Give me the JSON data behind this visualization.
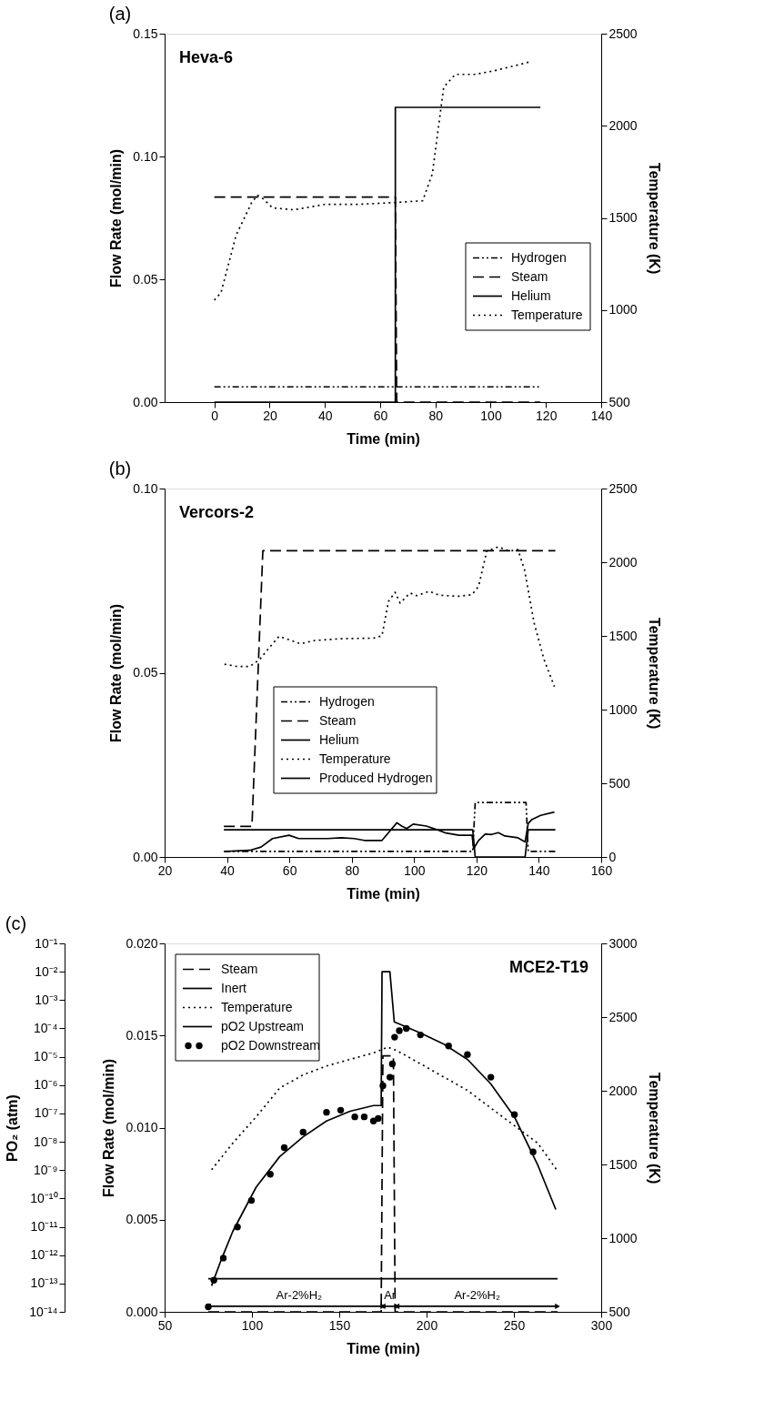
{
  "chart_data": [
    {
      "type": "line",
      "title": "(a)",
      "xlabel": "Time (min)",
      "ylabel": "Flow Rate (mol/min)",
      "y2label": "Temperature (K)",
      "annotations": [
        "Heva-6"
      ],
      "xlim": [
        -18,
        140
      ],
      "xticks": [
        0,
        20,
        40,
        60,
        80,
        100,
        120,
        140
      ],
      "ylim": [
        0,
        0.15
      ],
      "yticks": [
        {
          "value": 0,
          "label": "0.00"
        },
        {
          "value": 0.05,
          "label": "0.05"
        },
        {
          "value": 0.1,
          "label": "0.10"
        },
        {
          "value": 0.15,
          "label": "0.15"
        }
      ],
      "y2lim": [
        500,
        2500
      ],
      "y2ticks": [
        500,
        1000,
        1500,
        2000,
        2500
      ],
      "legend": "right",
      "grid": false,
      "series": [
        {
          "name": "Hydrogen",
          "color": "#000000",
          "line_style": "dashdot",
          "x": [
            0,
            118
          ],
          "values": [
            0.0062,
            0.0062
          ]
        },
        {
          "name": "Steam",
          "color": "#000000",
          "line_style": "dashed",
          "x": [
            0,
            65.5,
            66,
            118
          ],
          "values": [
            0.0835,
            0.0835,
            0,
            0
          ]
        },
        {
          "name": "Helium",
          "color": "#000000",
          "line_style": "solid",
          "x": [
            0,
            65.5,
            65.5,
            118
          ],
          "values": [
            0,
            0,
            0.12,
            0.12
          ]
        },
        {
          "name": "Temperature",
          "color": "#000000",
          "line_style": "dotted",
          "axis": "y2",
          "x": [
            0,
            2.4,
            7.9,
            13.5,
            15.6,
            17.7,
            21.1,
            28.8,
            39.9,
            51,
            64.9,
            75.4,
            78.9,
            83,
            87.2,
            94.2,
            101.1,
            114.3
          ],
          "values": [
            1054,
            1094,
            1407,
            1583,
            1622,
            1603,
            1554,
            1544,
            1573,
            1573,
            1583,
            1593,
            1740,
            2210,
            2279,
            2279,
            2298,
            2347
          ]
        }
      ]
    },
    {
      "type": "line",
      "title": "(b)",
      "xlabel": "Time (min)",
      "ylabel": "Flow Rate (mol/min)",
      "y2label": "Temperature (K)",
      "annotations": [
        "Vercors-2"
      ],
      "xlim": [
        20,
        160
      ],
      "xticks": [
        20,
        40,
        60,
        80,
        100,
        120,
        140,
        160
      ],
      "ylim": [
        0,
        0.1
      ],
      "yticks": [
        {
          "value": 0,
          "label": "0.00"
        },
        {
          "value": 0.05,
          "label": "0.05"
        },
        {
          "value": 0.1,
          "label": "0.10"
        }
      ],
      "y2lim": [
        0,
        2500
      ],
      "y2ticks": [
        0,
        500,
        1000,
        1500,
        2000,
        2500
      ],
      "legend": "left",
      "grid": false,
      "series": [
        {
          "name": "Hydrogen",
          "color": "#000000",
          "line_style": "dashdot",
          "x": [
            39,
            118.8,
            119.6,
            135.9,
            136.6,
            145.3
          ],
          "values": [
            0.0015,
            0.0015,
            0.0148,
            0.0148,
            0.0015,
            0.0015
          ]
        },
        {
          "name": "Steam",
          "color": "#000000",
          "line_style": "dashed",
          "x": [
            39,
            48,
            51.5,
            145.3
          ],
          "values": [
            0.0083,
            0.0083,
            0.0831,
            0.0831
          ]
        },
        {
          "name": "Helium",
          "color": "#000000",
          "line_style": "solid",
          "x": [
            39,
            118.8,
            119.6,
            135.6,
            136.6,
            145.3
          ],
          "values": [
            0.0074,
            0.0074,
            0,
            0,
            0.0074,
            0.0074
          ]
        },
        {
          "name": "Temperature",
          "color": "#000000",
          "line_style": "dotted",
          "axis": "y2",
          "x": [
            39.2,
            43.1,
            47.3,
            50.4,
            53,
            56.7,
            59.9,
            63.5,
            68.2,
            76.6,
            87.1,
            89.7,
            91.8,
            93.9,
            95.5,
            98.7,
            100.8,
            104.9,
            108.1,
            114.4,
            118.6,
            120.7,
            123.3,
            127,
            130.6,
            133.3,
            135.4,
            138.5,
            141.7,
            145
          ],
          "values": [
            1308,
            1293,
            1293,
            1338,
            1406,
            1497,
            1474,
            1447,
            1469,
            1481,
            1485,
            1501,
            1735,
            1796,
            1723,
            1791,
            1773,
            1803,
            1776,
            1769,
            1780,
            1837,
            2075,
            2104,
            2075,
            2086,
            1950,
            1587,
            1338,
            1156
          ]
        },
        {
          "name": "Produced Hydrogen",
          "color": "#000000",
          "line_style": "solid",
          "x": [
            39.2,
            47.3,
            50.9,
            54.6,
            59.9,
            63,
            72.4,
            76.6,
            80.8,
            84,
            89.7,
            94.5,
            96,
            97.6,
            99.7,
            103.9,
            108.1,
            110.2,
            114.4,
            118.6,
            119.1,
            120.7,
            122.8,
            124.9,
            127,
            129.1,
            133.3,
            135.6,
            136.6,
            137.7,
            140.6,
            145
          ],
          "values": [
            0.0015,
            0.0018,
            0.0027,
            0.005,
            0.0059,
            0.005,
            0.005,
            0.0052,
            0.005,
            0.0045,
            0.0045,
            0.0093,
            0.0084,
            0.0077,
            0.0089,
            0.0084,
            0.0072,
            0.0065,
            0.0059,
            0.0059,
            0.0023,
            0.0045,
            0.0062,
            0.0061,
            0.0066,
            0.0057,
            0.0052,
            0.0041,
            0.0091,
            0.0101,
            0.0113,
            0.0122
          ]
        }
      ]
    },
    {
      "type": "line",
      "title": "(c)",
      "xlabel": "Time (min)",
      "ylabel": "Flow Rate (mol/min)",
      "y2label": "Temperature (K)",
      "y3label": "PO₂ (atm)",
      "annotations": [
        "MCE2-T19",
        {
          "text": "Ar-2%H₂",
          "x": 127,
          "y": 0.0003
        },
        {
          "text": "Ar",
          "x": 179,
          "y": 0.0003
        },
        {
          "text": "Ar-2%H₂",
          "x": 229,
          "y": 0.0003
        }
      ],
      "xlim": [
        50,
        300
      ],
      "xticks": [
        50,
        100,
        150,
        200,
        250,
        300
      ],
      "ylim": [
        0,
        0.02
      ],
      "yticks": [
        {
          "value": 0,
          "label": "0.000"
        },
        {
          "value": 0.005,
          "label": "0.005"
        },
        {
          "value": 0.01,
          "label": "0.010"
        },
        {
          "value": 0.015,
          "label": "0.015"
        },
        {
          "value": 0.02,
          "label": "0.020"
        }
      ],
      "y2lim": [
        500,
        3000
      ],
      "y2ticks": [
        500,
        1000,
        1500,
        2000,
        2500,
        3000
      ],
      "y3lim": [
        1e-14,
        0.1
      ],
      "y3ticks": [
        {
          "value": 1e-14,
          "label": "10⁻¹⁴"
        },
        {
          "value": 1e-13,
          "label": "10⁻¹³"
        },
        {
          "value": 1e-12,
          "label": "10⁻¹²"
        },
        {
          "value": 1e-11,
          "label": "10⁻¹¹"
        },
        {
          "value": 1e-10,
          "label": "10⁻¹⁰"
        },
        {
          "value": 1e-09,
          "label": "10⁻⁹"
        },
        {
          "value": 1e-08,
          "label": "10⁻⁸"
        },
        {
          "value": 1e-07,
          "label": "10⁻⁷"
        },
        {
          "value": 1e-06,
          "label": "10⁻⁶"
        },
        {
          "value": 1e-05,
          "label": "10⁻⁵"
        },
        {
          "value": 0.0001,
          "label": "10⁻⁴"
        },
        {
          "value": 0.001,
          "label": "10⁻³"
        },
        {
          "value": 0.01,
          "label": "10⁻²"
        },
        {
          "value": 0.1,
          "label": "10⁻¹"
        }
      ],
      "log": "y3",
      "legend": "top left",
      "grid": false,
      "series": [
        {
          "color": "#000000",
          "line_style": "solid",
          "marker": "triangle",
          "x": [
            75,
            175
          ],
          "values": [
            0.0003,
            0.0003
          ]
        },
        {
          "color": "#000000",
          "line_style": "solid",
          "marker": "triangle",
          "x": [
            175,
            183
          ],
          "values": [
            0.0003,
            0.0003
          ]
        },
        {
          "color": "#000000",
          "line_style": "solid",
          "marker": "triangle",
          "x": [
            183,
            275
          ],
          "values": [
            0.0003,
            0.0003
          ]
        },
        {
          "name": "Steam",
          "color": "#000000",
          "line_style": "dashed",
          "x": [
            75,
            174,
            175,
            181,
            182,
            275
          ],
          "values": [
            0,
            0,
            0.0139,
            0.0139,
            0,
            0
          ]
        },
        {
          "name": "Inert",
          "color": "#000000",
          "line_style": "solid",
          "x": [
            75,
            275
          ],
          "values": [
            0.0018,
            0.0018
          ]
        },
        {
          "name": "Temperature",
          "color": "#000000",
          "line_style": "dotted",
          "axis": "y2",
          "x": [
            76.9,
            89,
            102.4,
            115.9,
            129.3,
            142.7,
            156.2,
            169.6,
            177.7,
            183.1,
            196.5,
            209.9,
            223.4,
            236.8,
            250.3,
            263.7,
            274.5
          ],
          "values": [
            1464,
            1644,
            1823,
            2018,
            2108,
            2168,
            2213,
            2257,
            2296,
            2272,
            2183,
            2093,
            2003,
            1883,
            1763,
            1644,
            1464
          ]
        },
        {
          "name": "pO2 Upstream",
          "color": "#000000",
          "line_style": "solid",
          "axis": "y3",
          "x": [
            76.9,
            82.3,
            89,
            102.4,
            115.9,
            129.3,
            142.7,
            156.2,
            169.6,
            174,
            174.5,
            179,
            181.5,
            196.5,
            209.9,
            223.4,
            236.8,
            250.3,
            263.7,
            274
          ],
          "values": [
            8.3e-14,
            6.6e-13,
            6.8e-12,
            2.5e-10,
            3e-09,
            1.5e-08,
            5.4e-08,
            1.2e-07,
            1.9e-07,
            1.9e-07,
            0.01,
            0.01,
            0.00017,
            6.9e-05,
            2.8e-05,
            8.1e-06,
            1.1e-06,
            7.6e-08,
            1.5e-09,
            4.1e-11
          ]
        },
        {
          "name": "pO2 Downstream",
          "color": "#000000",
          "type": "scatter",
          "marker": "circle",
          "axis": "y3",
          "x": [
            75,
            78.2,
            83.6,
            91.7,
            99.7,
            110.5,
            118.5,
            129.3,
            142.7,
            150.8,
            158.9,
            164.3,
            169.6,
            172.3,
            175,
            179,
            180.4,
            181.7,
            184.4,
            188.4,
            196.5,
            212.6,
            223.4,
            236.8,
            250.3,
            261
          ],
          "values": [
            1.5e-14,
            1.3e-13,
            7.9e-13,
            9.8e-12,
            8.5e-11,
            7.2e-10,
            6.2e-09,
            2.2e-08,
            1.1e-07,
            1.3e-07,
            7.6e-08,
            7.6e-08,
            5.4e-08,
            6.6e-08,
            9.5e-07,
            1.9e-06,
            5.6e-06,
            4.9e-05,
            8.3e-05,
            0.0001,
            5.9e-05,
            2.4e-05,
            1.2e-05,
            1.9e-06,
            9.1e-08,
            4.4e-09
          ]
        }
      ]
    }
  ]
}
